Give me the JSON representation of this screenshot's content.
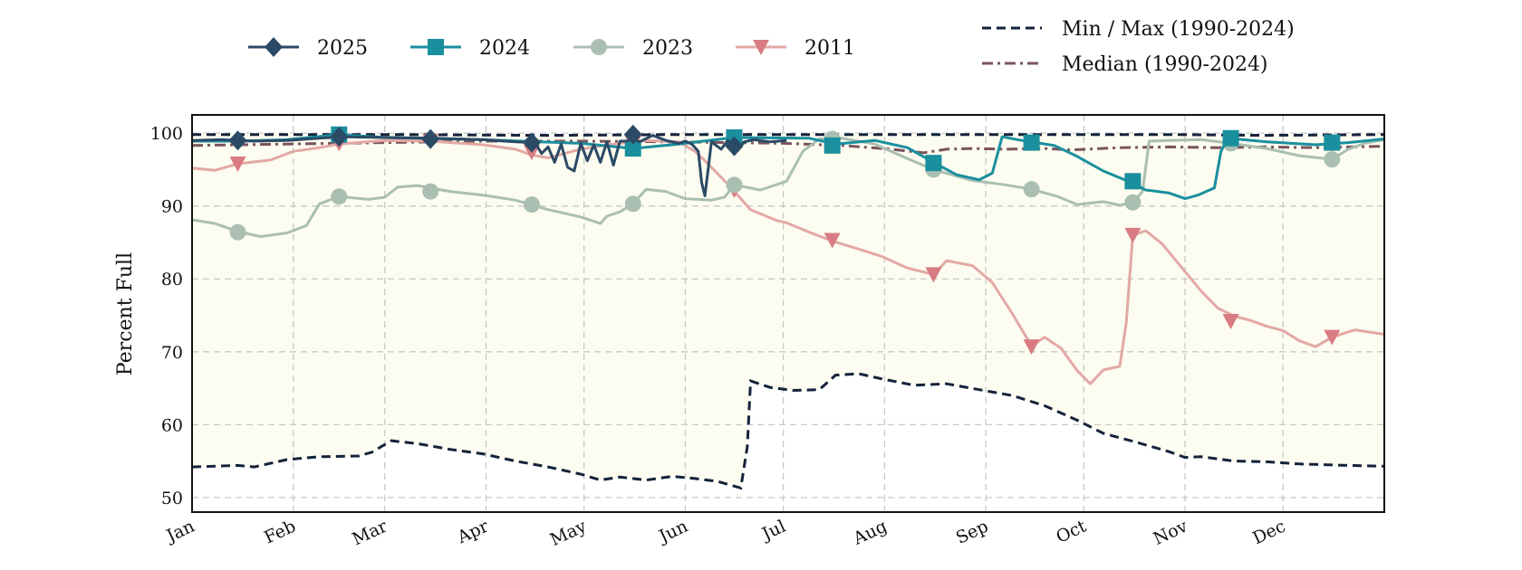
{
  "chart_data": {
    "type": "line",
    "ylabel": "Percent Full",
    "xlabel": "",
    "ylim": [
      48,
      102.5
    ],
    "xlim": [
      1,
      366
    ],
    "yticks": [
      50,
      60,
      70,
      80,
      90,
      100
    ],
    "x_ticks": [
      {
        "day": 1,
        "label": "Jan"
      },
      {
        "day": 32,
        "label": "Feb"
      },
      {
        "day": 60,
        "label": "Mar"
      },
      {
        "day": 91,
        "label": "Apr"
      },
      {
        "day": 121,
        "label": "May"
      },
      {
        "day": 152,
        "label": "Jun"
      },
      {
        "day": 182,
        "label": "Jul"
      },
      {
        "day": 213,
        "label": "Aug"
      },
      {
        "day": 244,
        "label": "Sep"
      },
      {
        "day": 274,
        "label": "Oct"
      },
      {
        "day": 305,
        "label": "Nov"
      },
      {
        "day": 335,
        "label": "Dec"
      }
    ],
    "grid": true,
    "legend_position": "top",
    "colors": {
      "band_fill": "#fcfcf0",
      "minmax": "#14233a",
      "median": "#7a545c",
      "s2025": "#2b4a66",
      "s2024": "#1a8f9e",
      "s2023": "#aabfb2",
      "s2011": "#d97b82",
      "s2011_line": "#e3a8a4"
    },
    "envelope": {
      "name": "Min / Max (1990-2024)",
      "max": [
        [
          1,
          99.8
        ],
        [
          60,
          99.8
        ],
        [
          110,
          99.7
        ],
        [
          150,
          99.8
        ],
        [
          200,
          99.8
        ],
        [
          245,
          99.8
        ],
        [
          300,
          99.8
        ],
        [
          330,
          99.7
        ],
        [
          366,
          99.8
        ]
      ],
      "min": [
        [
          1,
          54.2
        ],
        [
          15,
          54.4
        ],
        [
          20,
          54.2
        ],
        [
          30,
          55.2
        ],
        [
          40,
          55.6
        ],
        [
          52,
          55.7
        ],
        [
          56,
          56.2
        ],
        [
          62,
          57.8
        ],
        [
          70,
          57.4
        ],
        [
          80,
          56.6
        ],
        [
          90,
          56.0
        ],
        [
          100,
          55.0
        ],
        [
          110,
          54.2
        ],
        [
          120,
          53.2
        ],
        [
          126,
          52.4
        ],
        [
          132,
          52.8
        ],
        [
          140,
          52.4
        ],
        [
          148,
          52.9
        ],
        [
          155,
          52.6
        ],
        [
          162,
          52.2
        ],
        [
          169,
          51.3
        ],
        [
          171,
          57.0
        ],
        [
          172,
          66.0
        ],
        [
          178,
          65.1
        ],
        [
          185,
          64.7
        ],
        [
          193,
          64.8
        ],
        [
          198,
          66.8
        ],
        [
          205,
          67.0
        ],
        [
          212,
          66.3
        ],
        [
          222,
          65.4
        ],
        [
          232,
          65.6
        ],
        [
          242,
          64.8
        ],
        [
          252,
          64.0
        ],
        [
          262,
          62.6
        ],
        [
          272,
          60.6
        ],
        [
          280,
          58.8
        ],
        [
          290,
          57.6
        ],
        [
          300,
          56.3
        ],
        [
          305,
          55.5
        ],
        [
          310,
          55.6
        ],
        [
          320,
          55.0
        ],
        [
          330,
          54.9
        ],
        [
          340,
          54.6
        ],
        [
          355,
          54.4
        ],
        [
          366,
          54.3
        ]
      ]
    },
    "median": {
      "name": "Median (1990-2024)",
      "points": [
        [
          1,
          98.3
        ],
        [
          15,
          98.4
        ],
        [
          30,
          98.5
        ],
        [
          45,
          98.6
        ],
        [
          60,
          98.7
        ],
        [
          90,
          98.9
        ],
        [
          110,
          98.9
        ],
        [
          120,
          98.9
        ],
        [
          150,
          98.8
        ],
        [
          182,
          98.6
        ],
        [
          200,
          98.3
        ],
        [
          215,
          97.8
        ],
        [
          225,
          97.3
        ],
        [
          232,
          97.8
        ],
        [
          240,
          97.9
        ],
        [
          250,
          97.8
        ],
        [
          262,
          97.9
        ],
        [
          270,
          97.7
        ],
        [
          285,
          98.0
        ],
        [
          300,
          98.1
        ],
        [
          315,
          98.0
        ],
        [
          330,
          98.1
        ],
        [
          345,
          98.0
        ],
        [
          366,
          98.2
        ]
      ]
    },
    "series": [
      {
        "name": "2025",
        "marker": "diamond",
        "points": [
          [
            1,
            99.0
          ],
          [
            10,
            99.1
          ],
          [
            20,
            98.9
          ],
          [
            30,
            99.0
          ],
          [
            40,
            99.3
          ],
          [
            47,
            99.5
          ],
          [
            60,
            99.4
          ],
          [
            75,
            99.3
          ],
          [
            90,
            99.1
          ],
          [
            100,
            98.8
          ],
          [
            106,
            98.7
          ],
          [
            108,
            97.2
          ],
          [
            110,
            98.1
          ],
          [
            112,
            96.0
          ],
          [
            114,
            98.5
          ],
          [
            116,
            95.3
          ],
          [
            118,
            94.8
          ],
          [
            120,
            98.6
          ],
          [
            122,
            96.2
          ],
          [
            124,
            98.4
          ],
          [
            126,
            96.0
          ],
          [
            128,
            98.8
          ],
          [
            130,
            95.6
          ],
          [
            132,
            98.9
          ],
          [
            134,
            98.9
          ],
          [
            136,
            99.2
          ],
          [
            138,
            98.8
          ],
          [
            142,
            99.7
          ],
          [
            146,
            99.0
          ],
          [
            150,
            98.6
          ],
          [
            152,
            98.9
          ],
          [
            154,
            98.5
          ],
          [
            156,
            97.5
          ],
          [
            157,
            93.2
          ],
          [
            158,
            91.4
          ],
          [
            160,
            98.8
          ],
          [
            163,
            97.8
          ],
          [
            165,
            99.0
          ],
          [
            168,
            97.6
          ],
          [
            170,
            98.8
          ],
          [
            173,
            99.1
          ],
          [
            178,
            98.8
          ],
          [
            183,
            99.0
          ]
        ],
        "marker_points": [
          [
            15,
            99.0
          ],
          [
            46,
            99.5
          ],
          [
            74,
            99.2
          ],
          [
            105,
            98.7
          ],
          [
            136,
            99.8
          ],
          [
            167,
            98.2
          ]
        ]
      },
      {
        "name": "2024",
        "marker": "square",
        "points": [
          [
            1,
            98.9
          ],
          [
            15,
            98.9
          ],
          [
            30,
            99.1
          ],
          [
            46,
            99.8
          ],
          [
            60,
            99.4
          ],
          [
            90,
            99.1
          ],
          [
            120,
            98.6
          ],
          [
            136,
            97.9
          ],
          [
            150,
            98.5
          ],
          [
            167,
            99.4
          ],
          [
            190,
            99.3
          ],
          [
            198,
            98.5
          ],
          [
            210,
            99.0
          ],
          [
            220,
            98.0
          ],
          [
            228,
            96.0
          ],
          [
            235,
            94.3
          ],
          [
            242,
            93.6
          ],
          [
            246,
            94.5
          ],
          [
            249,
            99.5
          ],
          [
            255,
            99.0
          ],
          [
            265,
            98.3
          ],
          [
            272,
            96.8
          ],
          [
            280,
            94.8
          ],
          [
            287,
            93.5
          ],
          [
            293,
            92.2
          ],
          [
            300,
            91.8
          ],
          [
            305,
            91.0
          ],
          [
            309,
            91.5
          ],
          [
            314,
            92.5
          ],
          [
            316,
            97.5
          ],
          [
            318,
            99.3
          ],
          [
            330,
            98.8
          ],
          [
            345,
            98.4
          ],
          [
            355,
            98.7
          ],
          [
            366,
            99.2
          ]
        ],
        "marker_points": [
          [
            46,
            99.8
          ],
          [
            136,
            97.9
          ],
          [
            167,
            99.4
          ],
          [
            197,
            98.3
          ],
          [
            228,
            95.9
          ],
          [
            258,
            98.7
          ],
          [
            289,
            93.4
          ],
          [
            319,
            99.3
          ],
          [
            350,
            98.7
          ]
        ]
      },
      {
        "name": "2023",
        "marker": "circle",
        "points": [
          [
            1,
            88.1
          ],
          [
            8,
            87.6
          ],
          [
            15,
            86.5
          ],
          [
            22,
            85.8
          ],
          [
            30,
            86.3
          ],
          [
            36,
            87.3
          ],
          [
            40,
            90.3
          ],
          [
            46,
            91.3
          ],
          [
            55,
            90.9
          ],
          [
            60,
            91.2
          ],
          [
            64,
            92.6
          ],
          [
            70,
            92.8
          ],
          [
            80,
            92.0
          ],
          [
            90,
            91.5
          ],
          [
            100,
            90.8
          ],
          [
            110,
            89.5
          ],
          [
            120,
            88.5
          ],
          [
            126,
            87.6
          ],
          [
            128,
            88.6
          ],
          [
            132,
            89.2
          ],
          [
            136,
            90.3
          ],
          [
            140,
            92.3
          ],
          [
            146,
            92.0
          ],
          [
            152,
            91.0
          ],
          [
            160,
            90.8
          ],
          [
            164,
            91.2
          ],
          [
            167,
            92.9
          ],
          [
            175,
            92.2
          ],
          [
            183,
            93.4
          ],
          [
            188,
            97.5
          ],
          [
            193,
            99.2
          ],
          [
            200,
            99.3
          ],
          [
            210,
            98.5
          ],
          [
            220,
            96.5
          ],
          [
            228,
            95.0
          ],
          [
            240,
            93.5
          ],
          [
            250,
            92.9
          ],
          [
            258,
            92.3
          ],
          [
            266,
            91.3
          ],
          [
            272,
            90.2
          ],
          [
            280,
            90.6
          ],
          [
            285,
            90.1
          ],
          [
            289,
            90.5
          ],
          [
            292,
            92.0
          ],
          [
            294,
            98.9
          ],
          [
            300,
            99.0
          ],
          [
            310,
            99.1
          ],
          [
            319,
            98.6
          ],
          [
            330,
            97.9
          ],
          [
            340,
            96.9
          ],
          [
            350,
            96.4
          ],
          [
            355,
            97.8
          ],
          [
            360,
            98.6
          ],
          [
            366,
            99.1
          ]
        ],
        "marker_points": [
          [
            15,
            86.4
          ],
          [
            46,
            91.3
          ],
          [
            74,
            92.0
          ],
          [
            105,
            90.2
          ],
          [
            136,
            90.3
          ],
          [
            167,
            92.9
          ],
          [
            197,
            99.2
          ],
          [
            228,
            95.0
          ],
          [
            258,
            92.3
          ],
          [
            289,
            90.5
          ],
          [
            319,
            98.6
          ],
          [
            350,
            96.4
          ]
        ]
      },
      {
        "name": "2011",
        "marker": "triangle-down",
        "points": [
          [
            1,
            95.2
          ],
          [
            8,
            94.9
          ],
          [
            15,
            95.8
          ],
          [
            25,
            96.3
          ],
          [
            32,
            97.5
          ],
          [
            40,
            98.0
          ],
          [
            46,
            98.5
          ],
          [
            60,
            99.0
          ],
          [
            74,
            98.9
          ],
          [
            90,
            98.4
          ],
          [
            100,
            97.8
          ],
          [
            105,
            97.0
          ],
          [
            110,
            96.6
          ],
          [
            120,
            97.8
          ],
          [
            130,
            98.5
          ],
          [
            140,
            99.0
          ],
          [
            150,
            98.8
          ],
          [
            155,
            97.5
          ],
          [
            158,
            96.2
          ],
          [
            165,
            93.0
          ],
          [
            172,
            89.5
          ],
          [
            180,
            88.0
          ],
          [
            183,
            87.7
          ],
          [
            190,
            86.4
          ],
          [
            197,
            85.2
          ],
          [
            205,
            84.1
          ],
          [
            212,
            83.1
          ],
          [
            220,
            81.5
          ],
          [
            228,
            80.6
          ],
          [
            232,
            82.5
          ],
          [
            240,
            81.8
          ],
          [
            246,
            79.5
          ],
          [
            252,
            75.3
          ],
          [
            258,
            70.8
          ],
          [
            262,
            72.0
          ],
          [
            267,
            70.5
          ],
          [
            272,
            67.4
          ],
          [
            276,
            65.6
          ],
          [
            280,
            67.5
          ],
          [
            285,
            68.0
          ],
          [
            287,
            74.0
          ],
          [
            289,
            86.0
          ],
          [
            293,
            86.6
          ],
          [
            298,
            84.8
          ],
          [
            305,
            81.0
          ],
          [
            310,
            78.3
          ],
          [
            315,
            76.0
          ],
          [
            320,
            74.9
          ],
          [
            325,
            74.3
          ],
          [
            330,
            73.5
          ],
          [
            335,
            72.9
          ],
          [
            340,
            71.5
          ],
          [
            345,
            70.7
          ],
          [
            350,
            72.0
          ],
          [
            357,
            73.0
          ],
          [
            366,
            72.4
          ]
        ],
        "marker_points": [
          [
            15,
            95.8
          ],
          [
            46,
            98.6
          ],
          [
            74,
            98.9
          ],
          [
            105,
            97.4
          ],
          [
            136,
            98.6
          ],
          [
            167,
            92.2
          ],
          [
            197,
            85.3
          ],
          [
            228,
            80.6
          ],
          [
            258,
            70.7
          ],
          [
            289,
            86.0
          ],
          [
            319,
            74.2
          ],
          [
            350,
            72.0
          ]
        ]
      }
    ]
  }
}
